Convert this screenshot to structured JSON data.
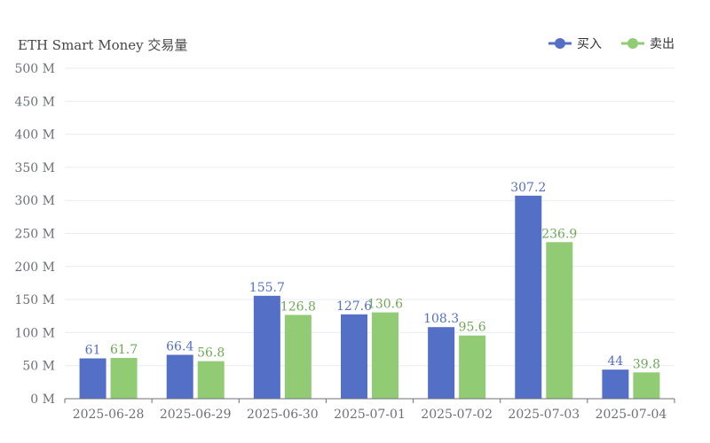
{
  "chart_data": {
    "type": "bar",
    "title": "ETH Smart Money 交易量",
    "categories": [
      "2025-06-28",
      "2025-06-29",
      "2025-06-30",
      "2025-07-01",
      "2025-07-02",
      "2025-07-03",
      "2025-07-04"
    ],
    "series": [
      {
        "name": "买入",
        "color": "#5470c6",
        "values": [
          61,
          66.4,
          155.7,
          127.6,
          108.3,
          307.2,
          44
        ],
        "value_labels": [
          "61",
          "66.4",
          "155.7",
          "127.6",
          "108.3",
          "307.2",
          "44"
        ]
      },
      {
        "name": "卖出",
        "color": "#91cc75",
        "values": [
          61.7,
          56.8,
          126.8,
          130.6,
          95.6,
          236.9,
          39.8
        ],
        "value_labels": [
          "61.7",
          "56.8",
          "126.8",
          "130.6",
          "95.6",
          "236.9",
          "39.8"
        ]
      }
    ],
    "ylim": [
      0,
      500
    ],
    "yticks": [
      0,
      50,
      100,
      150,
      200,
      250,
      300,
      350,
      400,
      450,
      500
    ],
    "ytick_labels": [
      "0 M",
      "50 M",
      "100 M",
      "150 M",
      "200 M",
      "250 M",
      "300 M",
      "350 M",
      "400 M",
      "450 M",
      "500 M"
    ],
    "xlabel": "",
    "ylabel": "",
    "grid": true,
    "legend_position": "top-right"
  }
}
